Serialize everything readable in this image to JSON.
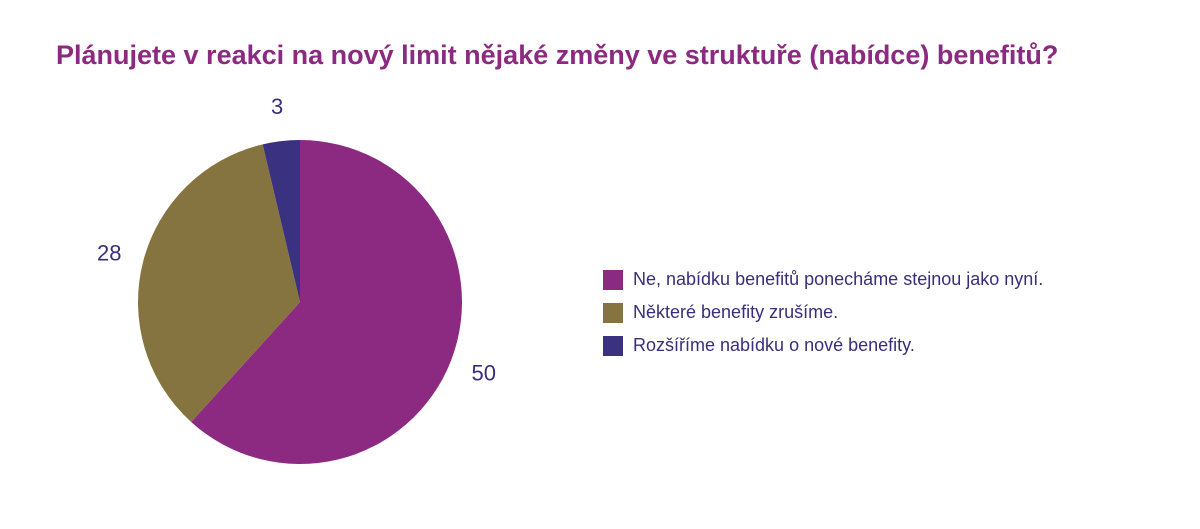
{
  "chart_data": {
    "type": "pie",
    "title": "Plánujete v reakci na nový limit nějaké změny ve struktuře (nabídce) benefitů?",
    "slices": [
      {
        "label": "Ne, nabídku benefitů ponecháme stejnou jako nyní.",
        "value": 50,
        "value_label": "50",
        "color": "#8b2a80"
      },
      {
        "label": "Některé benefity zrušíme.",
        "value": 28,
        "value_label": "28",
        "color": "#857440"
      },
      {
        "label": "Rozšíříme nabídku o nové benefity.",
        "value": 3,
        "value_label": "3",
        "color": "#3a3281"
      }
    ],
    "start": "12 o'clock",
    "direction": "clockwise",
    "legend_position": "right"
  }
}
